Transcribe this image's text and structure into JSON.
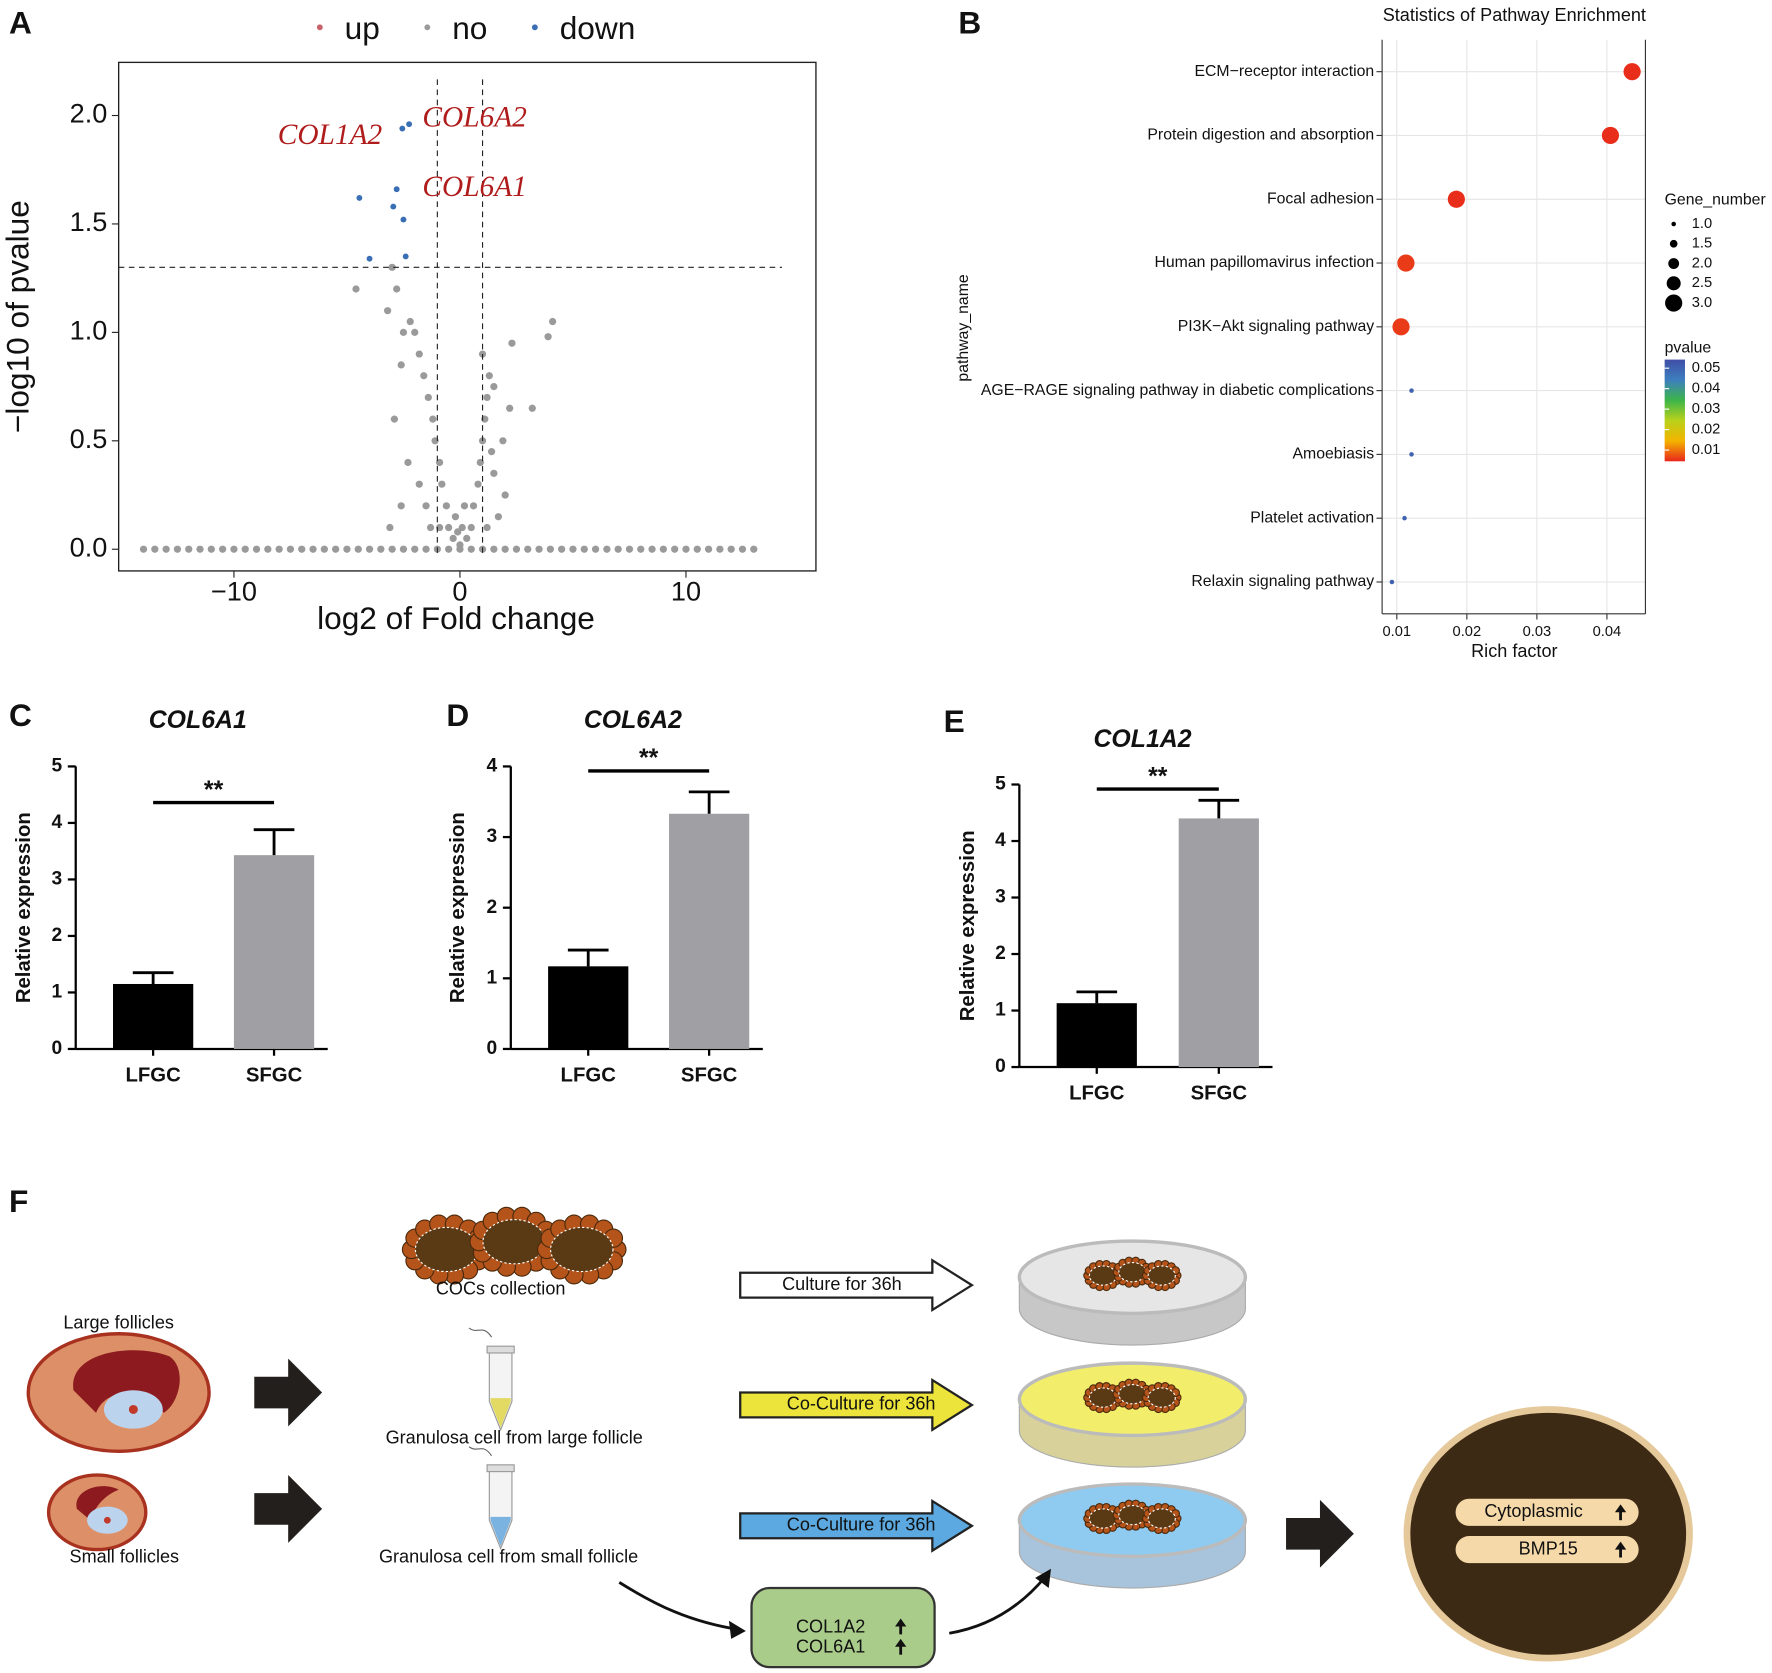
{
  "chart_data": [
    {
      "panel": "A",
      "type": "scatter",
      "xlabel": "log2 of Fold change",
      "ylabel": "−log10 of pvalue",
      "xlim": [
        -15.1,
        15.75
      ],
      "ylim": [
        -0.1,
        2.245
      ],
      "xticks": [
        {
          "value": -10,
          "label": "−10"
        },
        0,
        10
      ],
      "yticks": [
        {
          "value": 0,
          "label": "0.0"
        },
        0.5,
        {
          "value": 1,
          "label": "1.0"
        },
        1.5,
        {
          "value": 2,
          "label": "2.0"
        }
      ],
      "vlines": [
        -1,
        1
      ],
      "hlines": [
        1.3
      ],
      "legend": "top",
      "series": [
        {
          "name": "up",
          "color": "#c8626a",
          "x": [],
          "y": []
        },
        {
          "name": "no",
          "color": "#9a9a9a",
          "x": [
            -14,
            -13.5,
            -13,
            -12.5,
            -12,
            -11.5,
            -11,
            -10.5,
            -10,
            -9.5,
            -9,
            -8.5,
            -8,
            -7.5,
            -7,
            -6.5,
            -6,
            -5.5,
            -5,
            -4.5,
            -4,
            -3.5,
            -3,
            -2.5,
            -2,
            -1.5,
            -1,
            -0.5,
            0,
            0.5,
            1,
            1.5,
            2,
            2.5,
            3,
            3.5,
            4,
            4.5,
            5,
            5.5,
            6,
            6.5,
            7,
            7.5,
            8,
            8.5,
            9,
            9.5,
            10,
            10.5,
            11,
            11.5,
            12,
            12.5,
            13,
            -0.3,
            -0.5,
            -0.6,
            -0.8,
            -0.9,
            -1.1,
            -1.2,
            -1.4,
            -1.6,
            -1.8,
            -2.0,
            -2.2,
            -2.5,
            -2.8,
            -3.0,
            -4.6,
            -3.2,
            -2.6,
            -2.9,
            -2.3,
            -1.8,
            -1.5,
            -2.6,
            -3.1,
            -1.3,
            -0.9,
            0.3,
            0.5,
            0.6,
            0.8,
            0.9,
            1.0,
            1.1,
            1.2,
            1.3,
            1.0,
            1.5,
            2.2,
            3.2,
            1.9,
            1.5,
            2.0,
            1.7,
            1.2,
            4.1,
            3.9,
            2.3,
            1.4,
            0,
            -0.1,
            0.1,
            -0.2,
            0.2
          ],
          "y": [
            0,
            0,
            0,
            0,
            0,
            0,
            0,
            0,
            0,
            0,
            0,
            0,
            0,
            0,
            0,
            0,
            0,
            0,
            0,
            0,
            0,
            0,
            0,
            0,
            0,
            0,
            0,
            0,
            0,
            0,
            0,
            0,
            0,
            0,
            0,
            0,
            0,
            0,
            0,
            0,
            0,
            0,
            0,
            0,
            0,
            0,
            0,
            0,
            0,
            0,
            0,
            0,
            0,
            0,
            0,
            0.05,
            0.1,
            0.2,
            0.3,
            0.4,
            0.5,
            0.6,
            0.7,
            0.8,
            0.9,
            1.0,
            1.05,
            1.0,
            1.2,
            1.3,
            1.2,
            1.1,
            0.85,
            0.6,
            0.4,
            0.3,
            0.2,
            0.2,
            0.1,
            0.1,
            0.1,
            0.05,
            0.1,
            0.2,
            0.3,
            0.4,
            0.5,
            0.6,
            0.7,
            0.8,
            0.9,
            0.75,
            0.65,
            0.65,
            0.5,
            0.35,
            0.25,
            0.15,
            0.1,
            1.05,
            0.98,
            0.95,
            0.45,
            0.02,
            0.08,
            0.1,
            0.15,
            0.2
          ]
        },
        {
          "name": "down",
          "color": "#3a6fb5",
          "x": [
            -2.55,
            -2.25,
            -2.8,
            -4.45,
            -2.95,
            -2.5,
            -4.0,
            -2.4
          ],
          "y": [
            1.94,
            1.96,
            1.66,
            1.62,
            1.58,
            1.52,
            1.34,
            1.35
          ]
        }
      ],
      "annotations": [
        {
          "text": "COL1A2",
          "x": -5.75,
          "y": 1.9
        },
        {
          "text": "COL6A2",
          "x": 0.65,
          "y": 1.98
        },
        {
          "text": "COL6A1",
          "x": 0.65,
          "y": 1.66
        }
      ]
    },
    {
      "panel": "B",
      "type": "dot",
      "title": "Statistics of Pathway Enrichment",
      "xlabel": "Rich factor",
      "ylabel": "pathway_name",
      "categories": [
        "ECM−receptor interaction",
        "Protein digestion and absorption",
        "Focal adhesion",
        "Human papillomavirus infection",
        "PI3K−Akt signaling pathway",
        "AGE−RAGE signaling pathway in diabetic complications",
        "Amoebiasis",
        "Platelet activation",
        "Relaxin signaling pathway"
      ],
      "values": [
        0.0436,
        0.0405,
        0.0185,
        0.0113,
        0.0106,
        0.0121,
        0.0121,
        0.0111,
        0.0093
      ],
      "sizes": [
        3,
        3,
        3,
        3,
        3,
        1,
        1,
        1,
        1
      ],
      "pvalues": [
        0.005,
        0.005,
        0.005,
        0.006,
        0.006,
        0.05,
        0.05,
        0.05,
        0.05
      ],
      "xlim": [
        0.0079,
        0.0455
      ],
      "xticks": [
        0.01,
        0.02,
        0.03,
        0.04
      ],
      "grid": true,
      "size_legend": {
        "title": "Gene_number",
        "ticks": [
          {
            "value": 1,
            "label": "1.0"
          },
          1.5,
          {
            "value": 2,
            "label": "2.0"
          },
          2.5,
          {
            "value": 3,
            "label": "3.0"
          }
        ]
      },
      "color_legend": {
        "title": "pvalue",
        "clim": [
          0.0045,
          0.0542
        ],
        "ticks": [
          0.05,
          0.04,
          0.03,
          0.02,
          0.01
        ],
        "colors": [
          "#e8261c",
          "#f4b400",
          "#b9d11a",
          "#3cb54a",
          "#3e7fbf",
          "#3f4ea6"
        ]
      }
    },
    {
      "panel": "C",
      "type": "bar",
      "title": "COL6A1",
      "ylabel": "Relative expression",
      "categories": [
        "LFGC",
        "SFGC"
      ],
      "values": [
        1.15,
        3.43
      ],
      "errors": [
        0.2,
        0.45
      ],
      "colors": [
        "#000000",
        "#a0a0a4"
      ],
      "ylim": [
        0,
        5
      ],
      "yticks": [
        0,
        1,
        2,
        3,
        4,
        5
      ],
      "significance": "**"
    },
    {
      "panel": "D",
      "type": "bar",
      "title": "COL6A2",
      "ylabel": "Relative expression",
      "categories": [
        "LFGC",
        "SFGC"
      ],
      "values": [
        1.17,
        3.33
      ],
      "errors": [
        0.23,
        0.31
      ],
      "colors": [
        "#000000",
        "#a0a0a4"
      ],
      "ylim": [
        0,
        4
      ],
      "yticks": [
        0,
        1,
        2,
        3,
        4
      ],
      "significance": "**"
    },
    {
      "panel": "E",
      "type": "bar",
      "title": "COL1A2",
      "ylabel": "Relative expression",
      "categories": [
        "LFGC",
        "SFGC"
      ],
      "values": [
        1.13,
        4.4
      ],
      "errors": [
        0.2,
        0.32
      ],
      "colors": [
        "#000000",
        "#a0a0a4"
      ],
      "ylim": [
        0,
        5
      ],
      "yticks": [
        0,
        1,
        2,
        3,
        4,
        5
      ],
      "significance": "**"
    }
  ],
  "diagram": {
    "panel": "F",
    "cocs_label": "COCs collection",
    "large_label": "Large follicles",
    "small_label": "Small follicles",
    "gc_large": "Granulosa cell from large follicle",
    "gc_small": "Granulosa cell from small follicle",
    "arrows": [
      "Culture for 36h",
      "Co-Culture for 36h",
      "Co-Culture for 36h"
    ],
    "genes": [
      "COL1A2",
      "COL6A1"
    ],
    "outcomes": [
      "Cytoplasmic",
      "BMP15"
    ]
  }
}
